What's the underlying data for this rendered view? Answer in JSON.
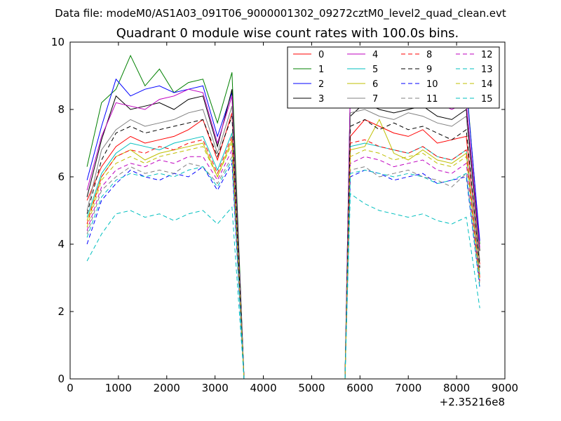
{
  "chart_data": {
    "type": "line",
    "suptitle": "Data file: modeM0/AS1A03_091T06_9000001302_09272cztM0_level2_quad_clean.evt",
    "title": "Quadrant 0 module wise count rates with 100.0s bins.",
    "xlabel": "",
    "ylabel": "",
    "x_offset_label": "+2.35216e8",
    "xlim": [
      0,
      9000
    ],
    "ylim": [
      0,
      10
    ],
    "xticks": [
      0,
      1000,
      2000,
      3000,
      4000,
      5000,
      6000,
      7000,
      8000,
      9000
    ],
    "yticks": [
      0,
      2,
      4,
      6,
      8,
      10
    ],
    "grid": false,
    "legend_position": "top-right",
    "x": [
      350,
      650,
      950,
      1250,
      1550,
      1850,
      2150,
      2450,
      2750,
      3050,
      3350,
      3600,
      3850,
      4150,
      4450,
      4750,
      5050,
      5350,
      5690,
      5800,
      6100,
      6400,
      6700,
      7000,
      7300,
      7600,
      7900,
      8200,
      8480
    ],
    "series": [
      {
        "name": "0",
        "color": "#ff0000",
        "dash": "solid",
        "values": [
          5.3,
          6.3,
          6.9,
          7.2,
          7.0,
          7.1,
          7.2,
          7.4,
          7.7,
          6.5,
          7.9,
          0,
          0,
          0,
          0,
          0,
          0,
          0,
          0,
          7.2,
          7.7,
          7.5,
          7.3,
          7.2,
          7.4,
          7.0,
          7.1,
          7.2,
          3.4
        ]
      },
      {
        "name": "1",
        "color": "#008000",
        "dash": "solid",
        "values": [
          6.3,
          8.2,
          8.6,
          9.6,
          8.7,
          9.2,
          8.5,
          8.8,
          8.9,
          7.6,
          9.1,
          0,
          0,
          0,
          0,
          0,
          0,
          0,
          0,
          8.7,
          8.9,
          8.7,
          8.6,
          8.8,
          8.9,
          8.6,
          8.5,
          8.8,
          4.0
        ]
      },
      {
        "name": "2",
        "color": "#0000ff",
        "dash": "solid",
        "values": [
          5.9,
          7.5,
          8.9,
          8.4,
          8.6,
          8.7,
          8.5,
          8.6,
          8.7,
          7.2,
          8.5,
          0,
          0,
          0,
          0,
          0,
          0,
          0,
          0,
          8.6,
          8.7,
          8.8,
          8.5,
          8.4,
          8.6,
          8.5,
          8.3,
          8.7,
          4.1
        ]
      },
      {
        "name": "3",
        "color": "#000000",
        "dash": "solid",
        "values": [
          5.4,
          7.1,
          8.4,
          8.0,
          8.1,
          8.2,
          8.0,
          8.3,
          8.4,
          6.9,
          8.6,
          0,
          0,
          0,
          0,
          0,
          0,
          0,
          0,
          7.8,
          8.2,
          8.0,
          7.9,
          8.0,
          8.1,
          7.8,
          7.7,
          8.0,
          3.8
        ]
      },
      {
        "name": "4",
        "color": "#bf00bf",
        "dash": "solid",
        "values": [
          5.6,
          7.2,
          8.2,
          8.1,
          8.0,
          8.3,
          8.4,
          8.6,
          8.5,
          7.0,
          8.4,
          0,
          0,
          0,
          0,
          0,
          0,
          0,
          0,
          8.7,
          8.5,
          8.3,
          8.4,
          8.2,
          8.3,
          8.2,
          8.0,
          8.2,
          3.9
        ]
      },
      {
        "name": "5",
        "color": "#00bfbf",
        "dash": "solid",
        "values": [
          4.8,
          6.1,
          6.7,
          7.0,
          6.9,
          6.8,
          7.0,
          7.1,
          7.2,
          6.2,
          7.3,
          0,
          0,
          0,
          0,
          0,
          0,
          0,
          0,
          6.9,
          7.0,
          6.9,
          6.8,
          6.7,
          6.9,
          6.6,
          6.5,
          6.8,
          3.1
        ]
      },
      {
        "name": "6",
        "color": "#bfbf00",
        "dash": "solid",
        "values": [
          4.7,
          6.0,
          6.6,
          6.8,
          6.5,
          6.7,
          6.8,
          6.9,
          7.0,
          6.0,
          7.1,
          0,
          0,
          0,
          0,
          0,
          0,
          0,
          0,
          6.8,
          6.9,
          7.7,
          6.7,
          6.5,
          6.8,
          6.5,
          6.4,
          6.7,
          3.0
        ]
      },
      {
        "name": "7",
        "color": "#808080",
        "dash": "solid",
        "values": [
          5.0,
          6.8,
          7.4,
          7.7,
          7.5,
          7.6,
          7.7,
          7.9,
          8.0,
          6.7,
          8.1,
          0,
          0,
          0,
          0,
          0,
          0,
          0,
          0,
          7.9,
          8.0,
          7.8,
          7.7,
          7.9,
          7.8,
          7.6,
          7.5,
          7.8,
          3.5
        ]
      },
      {
        "name": "8",
        "color": "#ff0000",
        "dash": "dashed",
        "values": [
          4.6,
          6.0,
          6.6,
          6.8,
          6.7,
          6.9,
          6.8,
          7.0,
          7.1,
          6.1,
          7.2,
          0,
          0,
          0,
          0,
          0,
          0,
          0,
          0,
          7.0,
          7.1,
          6.9,
          6.8,
          6.7,
          6.9,
          6.6,
          6.5,
          6.8,
          3.0
        ]
      },
      {
        "name": "9",
        "color": "#000000",
        "dash": "dashed",
        "values": [
          4.9,
          6.5,
          7.3,
          7.5,
          7.3,
          7.4,
          7.5,
          7.6,
          7.7,
          6.6,
          7.8,
          0,
          0,
          0,
          0,
          0,
          0,
          0,
          0,
          7.5,
          7.7,
          7.4,
          7.6,
          7.4,
          7.5,
          7.3,
          7.1,
          7.4,
          3.3
        ]
      },
      {
        "name": "10",
        "color": "#0000ff",
        "dash": "dashed",
        "values": [
          4.0,
          5.3,
          5.8,
          6.2,
          6.0,
          5.9,
          6.1,
          6.0,
          6.3,
          5.6,
          6.4,
          0,
          0,
          0,
          0,
          0,
          0,
          0,
          0,
          6.0,
          6.2,
          6.1,
          5.9,
          6.0,
          6.1,
          5.8,
          5.9,
          6.0,
          2.7
        ]
      },
      {
        "name": "11",
        "color": "#808080",
        "dash": "dashed",
        "values": [
          4.3,
          5.6,
          6.0,
          6.3,
          6.1,
          6.2,
          6.1,
          6.4,
          6.3,
          5.8,
          6.6,
          0,
          0,
          0,
          0,
          0,
          0,
          0,
          0,
          6.2,
          6.3,
          6.0,
          6.1,
          6.2,
          6.0,
          5.9,
          5.7,
          6.1,
          2.8
        ]
      },
      {
        "name": "12",
        "color": "#bf00bf",
        "dash": "dashed",
        "values": [
          4.4,
          5.7,
          6.2,
          6.4,
          6.3,
          6.5,
          6.4,
          6.6,
          6.6,
          5.9,
          6.8,
          0,
          0,
          0,
          0,
          0,
          0,
          0,
          0,
          6.4,
          6.6,
          6.5,
          6.3,
          6.4,
          6.5,
          6.2,
          6.1,
          6.4,
          2.9
        ]
      },
      {
        "name": "13",
        "color": "#00bfbf",
        "dash": "dashed",
        "values": [
          3.5,
          4.3,
          4.9,
          5.0,
          4.8,
          4.9,
          4.7,
          4.9,
          5.0,
          4.6,
          5.1,
          0,
          0,
          0,
          0,
          0,
          0,
          0,
          0,
          5.5,
          5.2,
          5.0,
          4.9,
          4.8,
          4.9,
          4.7,
          4.6,
          4.8,
          2.1
        ]
      },
      {
        "name": "14",
        "color": "#bfbf00",
        "dash": "dashed",
        "values": [
          4.5,
          5.9,
          6.4,
          6.6,
          6.4,
          6.6,
          6.7,
          6.8,
          6.9,
          6.0,
          7.0,
          0,
          0,
          0,
          0,
          0,
          0,
          0,
          0,
          6.6,
          6.8,
          6.7,
          6.5,
          6.6,
          6.7,
          6.4,
          6.3,
          6.6,
          2.9
        ]
      },
      {
        "name": "15",
        "color": "#00bfbf",
        "dash": "dashed",
        "values": [
          4.2,
          5.4,
          5.9,
          6.1,
          6.0,
          6.1,
          6.0,
          6.2,
          6.3,
          5.7,
          6.5,
          0,
          0,
          0,
          0,
          0,
          0,
          0,
          0,
          6.1,
          6.2,
          6.1,
          6.0,
          6.1,
          6.0,
          5.8,
          5.9,
          6.1,
          2.7
        ]
      }
    ]
  }
}
